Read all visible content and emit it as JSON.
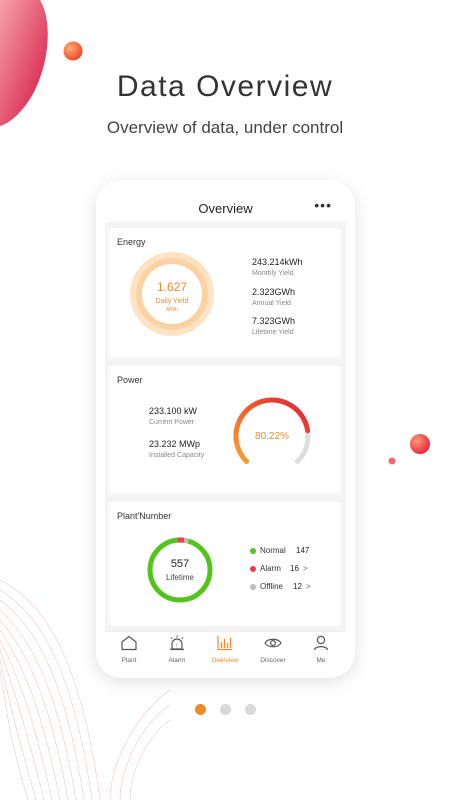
{
  "hero": {
    "title": "Data Overview",
    "subtitle": "Overview of data, under control"
  },
  "screen": {
    "title": "Overview",
    "more": "•••"
  },
  "energy": {
    "title": "Energy",
    "gauge_value": "1.627",
    "gauge_label": "Daily Yield",
    "gauge_unit": "MWh",
    "stats": [
      {
        "value": "243.214kWh",
        "label": "Monthly Yield"
      },
      {
        "value": "2.323GWh",
        "label": "Annual Yield"
      },
      {
        "value": "7.323GWh",
        "label": "Lifetime Yield"
      }
    ]
  },
  "power": {
    "title": "Power",
    "current_value": "233.100 kW",
    "current_label": "Current Power",
    "capacity_value": "23.232 MWp",
    "capacity_label": "Installed Capacity",
    "percent_text": "80.22%",
    "percent": 80.22
  },
  "plant": {
    "title": "Plant'Number",
    "total": "557",
    "total_label": "Lifetime",
    "items": [
      {
        "label": "Normal",
        "count": "147",
        "color": "#52c41a",
        "chevron": ""
      },
      {
        "label": "Alarm",
        "count": "16",
        "color": "#ee3b4a",
        "chevron": ">"
      },
      {
        "label": "Offline",
        "count": "12",
        "color": "#bbbbbb",
        "chevron": ">"
      }
    ]
  },
  "tabs": [
    {
      "label": "Plant",
      "icon": "home-icon"
    },
    {
      "label": "Alarm",
      "icon": "alarm-icon"
    },
    {
      "label": "Overview",
      "icon": "bar-chart-icon"
    },
    {
      "label": "Discover",
      "icon": "eye-icon"
    },
    {
      "label": "Me",
      "icon": "user-icon"
    }
  ],
  "pagination": {
    "count": 3,
    "active": 1
  },
  "colors": {
    "accent": "#f08a28",
    "normal": "#52c41a",
    "alarm": "#ee3b4a",
    "offline": "#bbbbbb",
    "blob": "#e8184a"
  }
}
